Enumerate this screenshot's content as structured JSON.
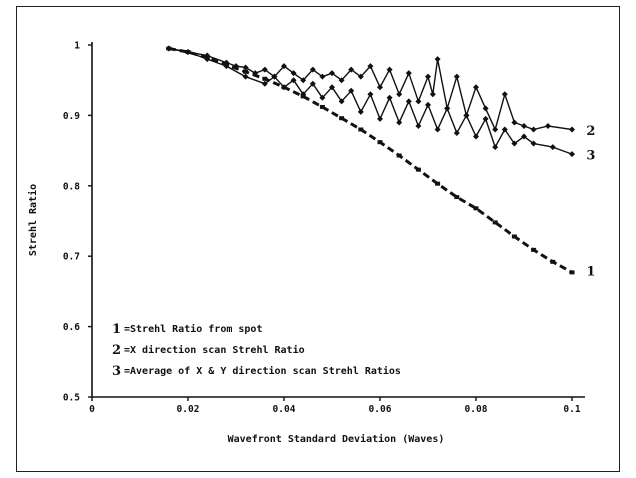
{
  "chart_data": {
    "type": "line",
    "xlabel": "Wavefront Standard Deviation (Waves)",
    "ylabel": "Strehl Ratio",
    "xlim": [
      0,
      0.1
    ],
    "ylim": [
      0.5,
      1
    ],
    "x_ticks": [
      {
        "value": 0,
        "label": "0"
      },
      {
        "value": 0.02,
        "label": "0.02"
      },
      {
        "value": 0.04,
        "label": "0.04"
      },
      {
        "value": 0.06,
        "label": "0.06"
      },
      {
        "value": 0.08,
        "label": "0.08"
      },
      {
        "value": 0.1,
        "label": "0.1"
      }
    ],
    "y_ticks": [
      {
        "value": 0.5,
        "label": "0.5"
      },
      {
        "value": 0.6,
        "label": "0.6"
      },
      {
        "value": 0.7,
        "label": "0.7"
      },
      {
        "value": 0.8,
        "label": "0.8"
      },
      {
        "value": 0.9,
        "label": "0.9"
      },
      {
        "value": 1.0,
        "label": "1"
      }
    ],
    "legend": [
      {
        "marker": "1",
        "text": "=Strehl Ratio from spot"
      },
      {
        "marker": "2",
        "text": "=X direction scan Strehl Ratio"
      },
      {
        "marker": "3",
        "text": "=Average of X & Y direction scan Strehl Ratios"
      }
    ],
    "legend_position": "bottom-left",
    "grid": false,
    "series": [
      {
        "id": "1",
        "style": "dashed",
        "x": [
          0.016,
          0.02,
          0.024,
          0.028,
          0.032,
          0.036,
          0.04,
          0.044,
          0.048,
          0.052,
          0.056,
          0.06,
          0.064,
          0.068,
          0.072,
          0.076,
          0.08,
          0.084,
          0.088,
          0.092,
          0.096,
          0.1
        ],
        "y": [
          0.995,
          0.99,
          0.982,
          0.972,
          0.962,
          0.952,
          0.94,
          0.927,
          0.912,
          0.896,
          0.88,
          0.862,
          0.843,
          0.823,
          0.803,
          0.784,
          0.768,
          0.748,
          0.728,
          0.709,
          0.692,
          0.677
        ]
      },
      {
        "id": "2",
        "style": "solid",
        "x": [
          0.016,
          0.02,
          0.024,
          0.028,
          0.03,
          0.032,
          0.034,
          0.036,
          0.038,
          0.04,
          0.042,
          0.044,
          0.046,
          0.048,
          0.05,
          0.052,
          0.054,
          0.056,
          0.058,
          0.06,
          0.062,
          0.064,
          0.066,
          0.068,
          0.07,
          0.071,
          0.072,
          0.074,
          0.076,
          0.078,
          0.08,
          0.082,
          0.084,
          0.086,
          0.088,
          0.09,
          0.092,
          0.095,
          0.1
        ],
        "y": [
          0.995,
          0.99,
          0.985,
          0.975,
          0.97,
          0.968,
          0.96,
          0.965,
          0.955,
          0.97,
          0.96,
          0.95,
          0.965,
          0.955,
          0.96,
          0.95,
          0.965,
          0.955,
          0.97,
          0.94,
          0.965,
          0.93,
          0.96,
          0.92,
          0.955,
          0.93,
          0.98,
          0.91,
          0.955,
          0.9,
          0.94,
          0.91,
          0.88,
          0.93,
          0.89,
          0.885,
          0.88,
          0.885,
          0.88
        ]
      },
      {
        "id": "3",
        "style": "solid",
        "x": [
          0.016,
          0.02,
          0.024,
          0.028,
          0.032,
          0.036,
          0.038,
          0.04,
          0.042,
          0.044,
          0.046,
          0.048,
          0.05,
          0.052,
          0.054,
          0.056,
          0.058,
          0.06,
          0.062,
          0.064,
          0.066,
          0.068,
          0.07,
          0.072,
          0.074,
          0.076,
          0.078,
          0.08,
          0.082,
          0.084,
          0.086,
          0.088,
          0.09,
          0.092,
          0.096,
          0.1
        ],
        "y": [
          0.995,
          0.99,
          0.98,
          0.97,
          0.955,
          0.945,
          0.955,
          0.94,
          0.95,
          0.93,
          0.945,
          0.925,
          0.94,
          0.92,
          0.935,
          0.905,
          0.93,
          0.895,
          0.925,
          0.89,
          0.92,
          0.885,
          0.915,
          0.88,
          0.91,
          0.875,
          0.9,
          0.87,
          0.895,
          0.855,
          0.88,
          0.86,
          0.87,
          0.86,
          0.855,
          0.845
        ]
      }
    ],
    "series_labels": [
      {
        "text": "2",
        "x": 0.103,
        "y": 0.878
      },
      {
        "text": "3",
        "x": 0.103,
        "y": 0.843
      },
      {
        "text": "1",
        "x": 0.103,
        "y": 0.678
      }
    ]
  }
}
